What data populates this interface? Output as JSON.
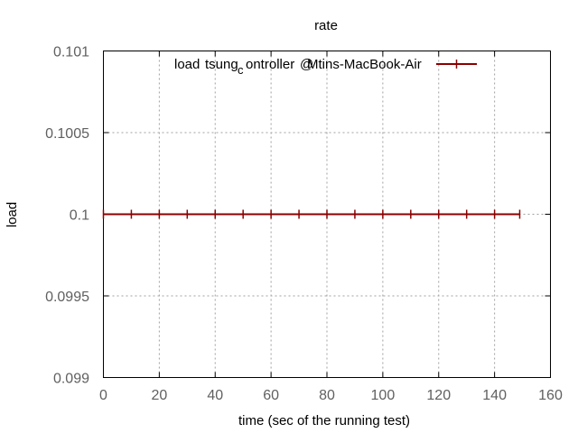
{
  "chart_data": {
    "type": "line",
    "title": "rate",
    "xlabel": "time (sec of the running test)",
    "ylabel": "load",
    "xlim": [
      0,
      160
    ],
    "ylim": [
      0.099,
      0.101
    ],
    "x_ticks": [
      0,
      20,
      40,
      60,
      80,
      100,
      120,
      140,
      160
    ],
    "x_tick_labels": [
      "0",
      "20",
      "40",
      "60",
      "80",
      "100",
      "120",
      "140",
      "160"
    ],
    "y_ticks": [
      0.099,
      0.0995,
      0.1,
      0.1005,
      0.101
    ],
    "y_tick_labels": [
      "0.099",
      "0.0995",
      "0.1",
      "0.1005",
      "0.101"
    ],
    "grid": true,
    "legend_position": "top-right",
    "series": [
      {
        "name": "load tsung_controller@Mtins-MacBook-Air",
        "color": "#8b0000",
        "x": [
          0,
          10,
          20,
          30,
          40,
          50,
          60,
          70,
          80,
          90,
          100,
          110,
          120,
          130,
          140,
          149
        ],
        "y": [
          0.1,
          0.1,
          0.1,
          0.1,
          0.1,
          0.1,
          0.1,
          0.1,
          0.1,
          0.1,
          0.1,
          0.1,
          0.1,
          0.1,
          0.1,
          0.1
        ]
      }
    ]
  },
  "legend": {
    "segments": [
      "load ",
      "tsung",
      "c",
      "ontroller",
      "@",
      "Mtins-MacBook-Air"
    ]
  }
}
